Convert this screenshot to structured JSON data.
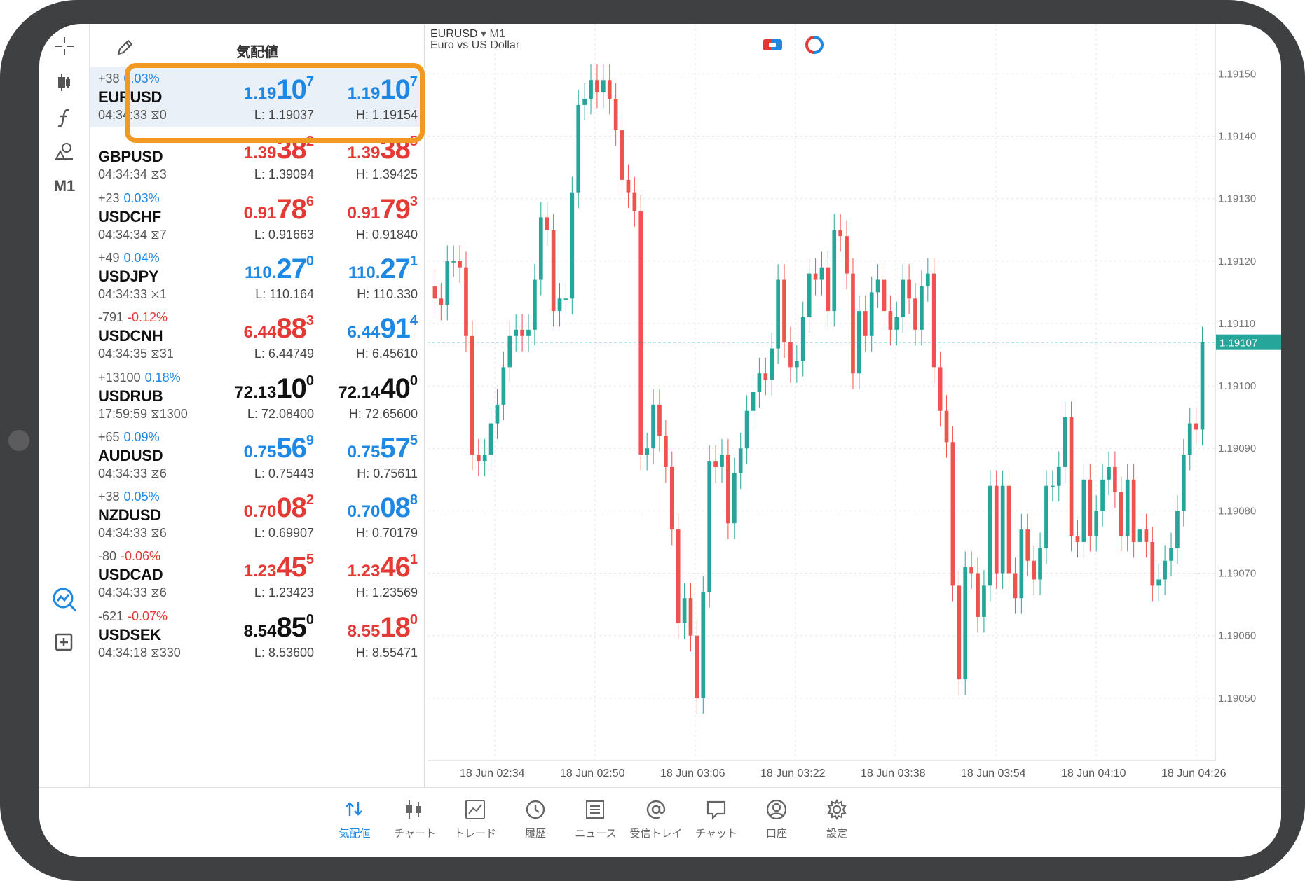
{
  "quotes": {
    "title": "気配値",
    "rows": [
      {
        "change": "+38",
        "pct": "0.03%",
        "dir": "up",
        "symbol": "EURUSD",
        "time": "04:34:33",
        "spread": "0",
        "bid": {
          "pre": "1.19",
          "big": "10",
          "sup": "7",
          "color": "blue"
        },
        "ask": {
          "pre": "1.19",
          "big": "10",
          "sup": "7",
          "color": "blue"
        },
        "low": "L: 1.19037",
        "high": "H: 1.19154"
      },
      {
        "change": "",
        "pct": "",
        "dir": "up",
        "symbol": "GBPUSD",
        "time": "04:34:34",
        "spread": "3",
        "bid": {
          "pre": "1.39",
          "big": "38",
          "sup": "2",
          "color": "red"
        },
        "ask": {
          "pre": "1.39",
          "big": "38",
          "sup": "5",
          "color": "red"
        },
        "low": "L: 1.39094",
        "high": "H: 1.39425"
      },
      {
        "change": "+23",
        "pct": "0.03%",
        "dir": "up",
        "symbol": "USDCHF",
        "time": "04:34:34",
        "spread": "7",
        "bid": {
          "pre": "0.91",
          "big": "78",
          "sup": "6",
          "color": "red"
        },
        "ask": {
          "pre": "0.91",
          "big": "79",
          "sup": "3",
          "color": "red"
        },
        "low": "L: 0.91663",
        "high": "H: 0.91840"
      },
      {
        "change": "+49",
        "pct": "0.04%",
        "dir": "up",
        "symbol": "USDJPY",
        "time": "04:34:33",
        "spread": "1",
        "bid": {
          "pre": "110.",
          "big": "27",
          "sup": "0",
          "color": "blue"
        },
        "ask": {
          "pre": "110.",
          "big": "27",
          "sup": "1",
          "color": "blue"
        },
        "low": "L: 110.164",
        "high": "H: 110.330"
      },
      {
        "change": "-791",
        "pct": "-0.12%",
        "dir": "down",
        "symbol": "USDCNH",
        "time": "04:34:35",
        "spread": "31",
        "bid": {
          "pre": "6.44",
          "big": "88",
          "sup": "3",
          "color": "red"
        },
        "ask": {
          "pre": "6.44",
          "big": "91",
          "sup": "4",
          "color": "blue"
        },
        "low": "L: 6.44749",
        "high": "H: 6.45610"
      },
      {
        "change": "+13100",
        "pct": "0.18%",
        "dir": "up",
        "symbol": "USDRUB",
        "time": "17:59:59",
        "spread": "1300",
        "bid": {
          "pre": "72.13",
          "big": "10",
          "sup": "0",
          "color": "black"
        },
        "ask": {
          "pre": "72.14",
          "big": "40",
          "sup": "0",
          "color": "black"
        },
        "low": "L: 72.08400",
        "high": "H: 72.65600"
      },
      {
        "change": "+65",
        "pct": "0.09%",
        "dir": "up",
        "symbol": "AUDUSD",
        "time": "04:34:33",
        "spread": "6",
        "bid": {
          "pre": "0.75",
          "big": "56",
          "sup": "9",
          "color": "blue"
        },
        "ask": {
          "pre": "0.75",
          "big": "57",
          "sup": "5",
          "color": "blue"
        },
        "low": "L: 0.75443",
        "high": "H: 0.75611"
      },
      {
        "change": "+38",
        "pct": "0.05%",
        "dir": "up",
        "symbol": "NZDUSD",
        "time": "04:34:33",
        "spread": "6",
        "bid": {
          "pre": "0.70",
          "big": "08",
          "sup": "2",
          "color": "red"
        },
        "ask": {
          "pre": "0.70",
          "big": "08",
          "sup": "8",
          "color": "blue"
        },
        "low": "L: 0.69907",
        "high": "H: 0.70179"
      },
      {
        "change": "-80",
        "pct": "-0.06%",
        "dir": "down",
        "symbol": "USDCAD",
        "time": "04:34:33",
        "spread": "6",
        "bid": {
          "pre": "1.23",
          "big": "45",
          "sup": "5",
          "color": "red"
        },
        "ask": {
          "pre": "1.23",
          "big": "46",
          "sup": "1",
          "color": "red"
        },
        "low": "L: 1.23423",
        "high": "H: 1.23569"
      },
      {
        "change": "-621",
        "pct": "-0.07%",
        "dir": "down",
        "symbol": "USDSEK",
        "time": "04:34:18",
        "spread": "330",
        "bid": {
          "pre": "8.54",
          "big": "85",
          "sup": "0",
          "color": "black"
        },
        "ask": {
          "pre": "8.55",
          "big": "18",
          "sup": "0",
          "color": "red"
        },
        "low": "L: 8.53600",
        "high": "H: 8.55471"
      }
    ]
  },
  "toolbar": {
    "timeframe": "M1",
    "icons": [
      "crosshair-icon",
      "candlestick-icon",
      "function-icon",
      "objects-icon"
    ]
  },
  "chart": {
    "symbol": "EURUSD",
    "dropdown": "▾",
    "timeframe": "M1",
    "description": "Euro vs US Dollar",
    "colors": {
      "bull": "#26a69a",
      "bear": "#ef5350",
      "price_line": "#26a69a",
      "grid": "#e6e6e6"
    }
  },
  "chart_data": {
    "type": "candlestick",
    "y_ticks": [
      "1.19150",
      "1.19140",
      "1.19130",
      "1.19120",
      "1.19110",
      "1.19100",
      "1.19090",
      "1.19080",
      "1.19070",
      "1.19060",
      "1.19050"
    ],
    "x_ticks": [
      "18 Jun 02:34",
      "18 Jun 02:50",
      "18 Jun 03:06",
      "18 Jun 03:22",
      "18 Jun 03:38",
      "18 Jun 03:54",
      "18 Jun 04:10",
      "18 Jun 04:26"
    ],
    "ylim": [
      1.1904,
      1.19158
    ],
    "current_price": "1.19107",
    "closes": [
      1.19114,
      1.19113,
      1.1912,
      1.1912,
      1.19119,
      1.19108,
      1.19089,
      1.19088,
      1.19089,
      1.19094,
      1.19097,
      1.19103,
      1.19108,
      1.19109,
      1.19108,
      1.19109,
      1.19117,
      1.19127,
      1.19125,
      1.19112,
      1.19114,
      1.19114,
      1.19131,
      1.19145,
      1.19146,
      1.19149,
      1.19147,
      1.19149,
      1.19146,
      1.19141,
      1.19133,
      1.19131,
      1.19128,
      1.19089,
      1.1909,
      1.19097,
      1.19092,
      1.19087,
      1.19077,
      1.19062,
      1.19066,
      1.1906,
      1.1905,
      1.19067,
      1.19088,
      1.19087,
      1.19089,
      1.19078,
      1.19086,
      1.1909,
      1.19096,
      1.19099,
      1.19102,
      1.19101,
      1.19106,
      1.19117,
      1.19107,
      1.19103,
      1.19104,
      1.19111,
      1.19118,
      1.19117,
      1.19119,
      1.19112,
      1.19125,
      1.19124,
      1.19118,
      1.19102,
      1.19112,
      1.19108,
      1.19115,
      1.19117,
      1.19112,
      1.19109,
      1.19111,
      1.19117,
      1.19114,
      1.19109,
      1.19116,
      1.19118,
      1.19103,
      1.19096,
      1.19091,
      1.19068,
      1.19053,
      1.19071,
      1.1907,
      1.19063,
      1.19068,
      1.19084,
      1.1907,
      1.19084,
      1.1907,
      1.19066,
      1.19077,
      1.19072,
      1.19069,
      1.19074,
      1.19084,
      1.19084,
      1.19087,
      1.19095,
      1.19076,
      1.19075,
      1.19085,
      1.19076,
      1.1908,
      1.19085,
      1.19087,
      1.19083,
      1.19076,
      1.19085,
      1.19075,
      1.19077,
      1.19075,
      1.19068,
      1.19069,
      1.19072,
      1.19074,
      1.1908,
      1.19089,
      1.19094,
      1.19093,
      1.19107
    ],
    "opens": [
      1.19116,
      1.19114,
      1.19113,
      1.1912,
      1.1912,
      1.19119,
      1.19108,
      1.19089,
      1.19088,
      1.19089,
      1.19094,
      1.19097,
      1.19103,
      1.19108,
      1.19109,
      1.19108,
      1.19109,
      1.19117,
      1.19127,
      1.19125,
      1.19112,
      1.19114,
      1.19114,
      1.19131,
      1.19145,
      1.19146,
      1.19149,
      1.19147,
      1.19149,
      1.19146,
      1.19141,
      1.19133,
      1.19131,
      1.19128,
      1.19089,
      1.1909,
      1.19097,
      1.19092,
      1.19087,
      1.19077,
      1.19062,
      1.19066,
      1.1906,
      1.1905,
      1.19067,
      1.19088,
      1.19087,
      1.19089,
      1.19078,
      1.19086,
      1.1909,
      1.19096,
      1.19099,
      1.19102,
      1.19101,
      1.19106,
      1.19117,
      1.19107,
      1.19103,
      1.19104,
      1.19111,
      1.19118,
      1.19117,
      1.19119,
      1.19112,
      1.19125,
      1.19124,
      1.19118,
      1.19102,
      1.19112,
      1.19108,
      1.19115,
      1.19117,
      1.19112,
      1.19109,
      1.19111,
      1.19117,
      1.19114,
      1.19109,
      1.19116,
      1.19118,
      1.19103,
      1.19096,
      1.19091,
      1.19068,
      1.19053,
      1.19071,
      1.1907,
      1.19063,
      1.19068,
      1.19084,
      1.1907,
      1.19084,
      1.1907,
      1.19066,
      1.19077,
      1.19072,
      1.19069,
      1.19074,
      1.19084,
      1.19084,
      1.19087,
      1.19095,
      1.19076,
      1.19075,
      1.19085,
      1.19076,
      1.1908,
      1.19085,
      1.19087,
      1.19083,
      1.19076,
      1.19085,
      1.19075,
      1.19077,
      1.19075,
      1.19068,
      1.19069,
      1.19072,
      1.19074,
      1.1908,
      1.19089,
      1.19094,
      1.19093
    ]
  },
  "tabs": [
    {
      "label": "気配値",
      "icon": "quotes-icon",
      "active": true
    },
    {
      "label": "チャート",
      "icon": "chart-icon",
      "active": false
    },
    {
      "label": "トレード",
      "icon": "trade-icon",
      "active": false
    },
    {
      "label": "履歴",
      "icon": "history-icon",
      "active": false
    },
    {
      "label": "ニュース",
      "icon": "news-icon",
      "active": false
    },
    {
      "label": "受信トレイ",
      "icon": "mailbox-icon",
      "active": false
    },
    {
      "label": "チャット",
      "icon": "chat-icon",
      "active": false
    },
    {
      "label": "口座",
      "icon": "account-icon",
      "active": false
    },
    {
      "label": "設定",
      "icon": "settings-icon",
      "active": false
    }
  ]
}
